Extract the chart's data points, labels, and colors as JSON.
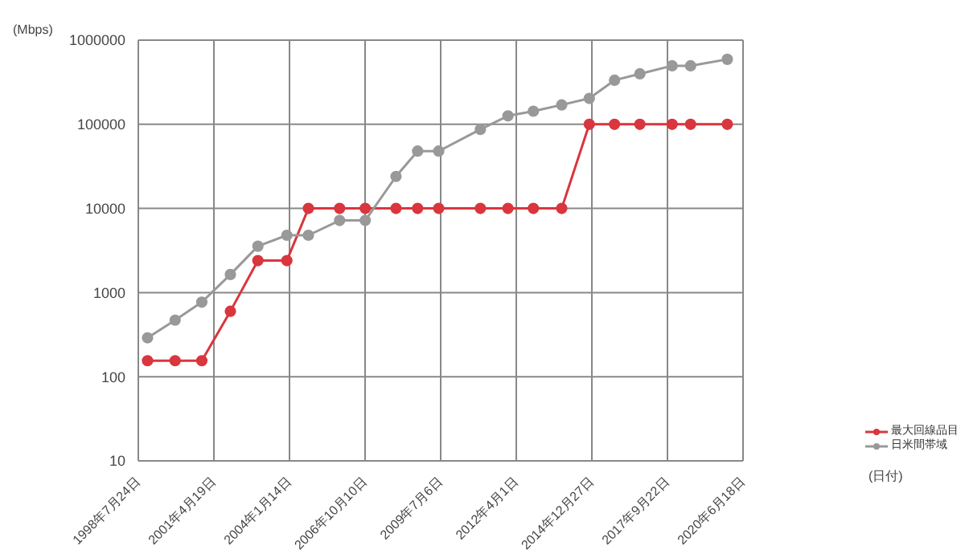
{
  "chart_data": {
    "type": "line",
    "ylabel": "(Mbps)",
    "annotations": [
      "(日付)"
    ],
    "xlim": [
      "1998-07-24",
      "2020-06-18"
    ],
    "xticks": [
      {
        "value": "1998-07-24",
        "label": "1998年7月24日"
      },
      {
        "value": "2001-04-19",
        "label": "2001年4月19日"
      },
      {
        "value": "2004-01-14",
        "label": "2004年1月14日"
      },
      {
        "value": "2006-10-10",
        "label": "2006年10月10日"
      },
      {
        "value": "2009-07-06",
        "label": "2009年7月6日"
      },
      {
        "value": "2012-04-01",
        "label": "2012年4月1日"
      },
      {
        "value": "2014-12-27",
        "label": "2014年12月27日"
      },
      {
        "value": "2017-09-22",
        "label": "2017年9月22日"
      },
      {
        "value": "2020-06-18",
        "label": "2020年6月18日"
      }
    ],
    "ylim": [
      10,
      1000000
    ],
    "yticks": [
      10,
      100,
      1000,
      10000,
      100000,
      1000000
    ],
    "log": "y",
    "grid": true,
    "legend": "right",
    "marker": "circle",
    "line_style": "solid",
    "x": [
      "1998-11-23",
      "1999-11-23",
      "2000-11-10",
      "2001-11-23",
      "2002-11-22",
      "2003-12-10",
      "2004-09-20",
      "2005-11-07",
      "2006-10-12",
      "2007-11-23",
      "2008-09-04",
      "2009-06-10",
      "2010-12-13",
      "2011-12-13",
      "2012-11-13",
      "2013-11-23",
      "2014-11-23",
      "2015-10-23",
      "2016-09-22",
      "2017-11-23",
      "2018-07-25",
      "2019-11-23"
    ],
    "series": [
      {
        "name": "最大回線品目",
        "color": "#d9363e",
        "values": [
          155,
          155,
          155,
          600,
          2400,
          2400,
          10000,
          10000,
          10000,
          10000,
          10000,
          10000,
          10000,
          10000,
          10000,
          10000,
          100000,
          100000,
          100000,
          100000,
          100000,
          100000
        ]
      },
      {
        "name": "日米間帯域",
        "color": "#999999",
        "values": [
          290,
          470,
          770,
          1640,
          3560,
          4800,
          4800,
          7200,
          7200,
          24000,
          48000,
          48000,
          87000,
          126000,
          143000,
          170000,
          203000,
          334000,
          398000,
          496000,
          496000,
          592000
        ]
      }
    ]
  }
}
